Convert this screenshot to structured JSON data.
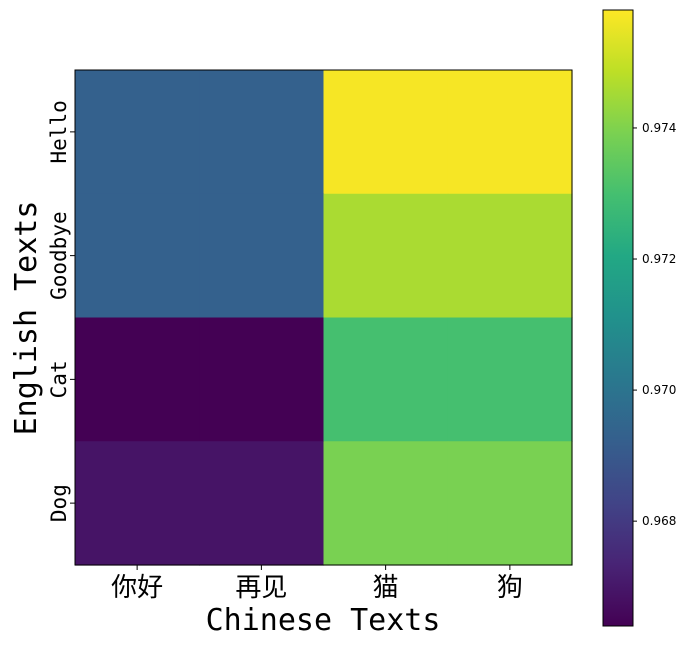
{
  "chart_data": {
    "type": "heatmap",
    "xlabel": "Chinese Texts",
    "ylabel": "English Texts",
    "x_categories": [
      "你好",
      "再见",
      "猫",
      "狗"
    ],
    "y_categories": [
      "Hello",
      "Goodbye",
      "Cat",
      "Dog"
    ],
    "values": [
      [
        0.9693,
        0.9693,
        0.9757,
        0.9757
      ],
      [
        0.9693,
        0.9693,
        0.9746,
        0.9746
      ],
      [
        0.9664,
        0.9664,
        0.973,
        0.973
      ],
      [
        0.9669,
        0.9669,
        0.9739,
        0.9739
      ]
    ],
    "colormap": "viridis",
    "colorbar": {
      "range": [
        0.9664,
        0.9758
      ],
      "ticks": [
        0.968,
        0.97,
        0.972,
        0.974
      ],
      "tick_labels": [
        "0.968",
        "0.970",
        "0.972",
        "0.974"
      ]
    },
    "grid": false,
    "legend": "colorbar-right"
  }
}
